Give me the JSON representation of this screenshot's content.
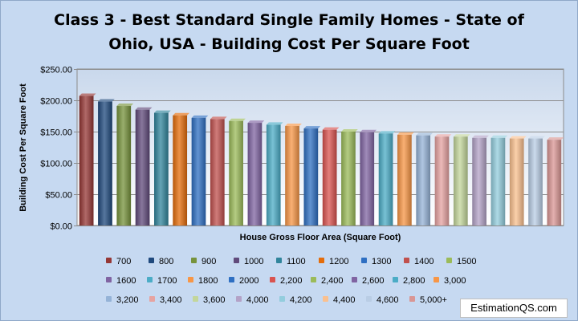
{
  "watermark": "EstimationQS.com",
  "chart_data": {
    "type": "bar",
    "title": [
      "Class 3 - Best Standard Single Family Homes  - State of",
      "Ohio, USA  - Building Cost Per Square Foot"
    ],
    "xlabel": "House Gross Floor Area (Square Foot)",
    "ylabel": "Building Cost Per Square Foot",
    "ylim": [
      0,
      250
    ],
    "yticks": [
      "$0.00",
      "$50.00",
      "$100.00",
      "$150.00",
      "$200.00",
      "$250.00"
    ],
    "ytick_values": [
      0,
      50,
      100,
      150,
      200,
      250
    ],
    "grid": true,
    "legend_position": "bottom",
    "categories": [
      "700",
      "800",
      "900",
      "1000",
      "1100",
      "1200",
      "1300",
      "1400",
      "1500",
      "1600",
      "1700",
      "1800",
      "2000",
      "2,200",
      "2,400",
      "2,600",
      "2,800",
      "3,000",
      "3,200",
      "3,400",
      "3,600",
      "4,000",
      "4,200",
      "4,400",
      "4,600",
      "5,000+"
    ],
    "values": [
      207,
      198,
      191,
      185,
      180,
      176,
      172,
      170,
      167,
      164,
      161,
      159,
      155,
      153,
      150,
      149,
      147,
      145,
      144,
      142,
      142,
      140,
      140,
      139,
      139,
      137
    ],
    "colors": [
      "#953735",
      "#1f497d",
      "#77933c",
      "#604a7b",
      "#31859c",
      "#e46c0a",
      "#2e6fc2",
      "#c0504d",
      "#9bbb59",
      "#8064a2",
      "#4bacc6",
      "#f79646",
      "#2e6fc2",
      "#d9534f",
      "#9bbb59",
      "#8064a2",
      "#4bacc6",
      "#f79646",
      "#95b3d7",
      "#e6a3a1",
      "#c3d69b",
      "#b3a2c7",
      "#93cddd",
      "#fac08f",
      "#b9cde5",
      "#d99694"
    ]
  }
}
